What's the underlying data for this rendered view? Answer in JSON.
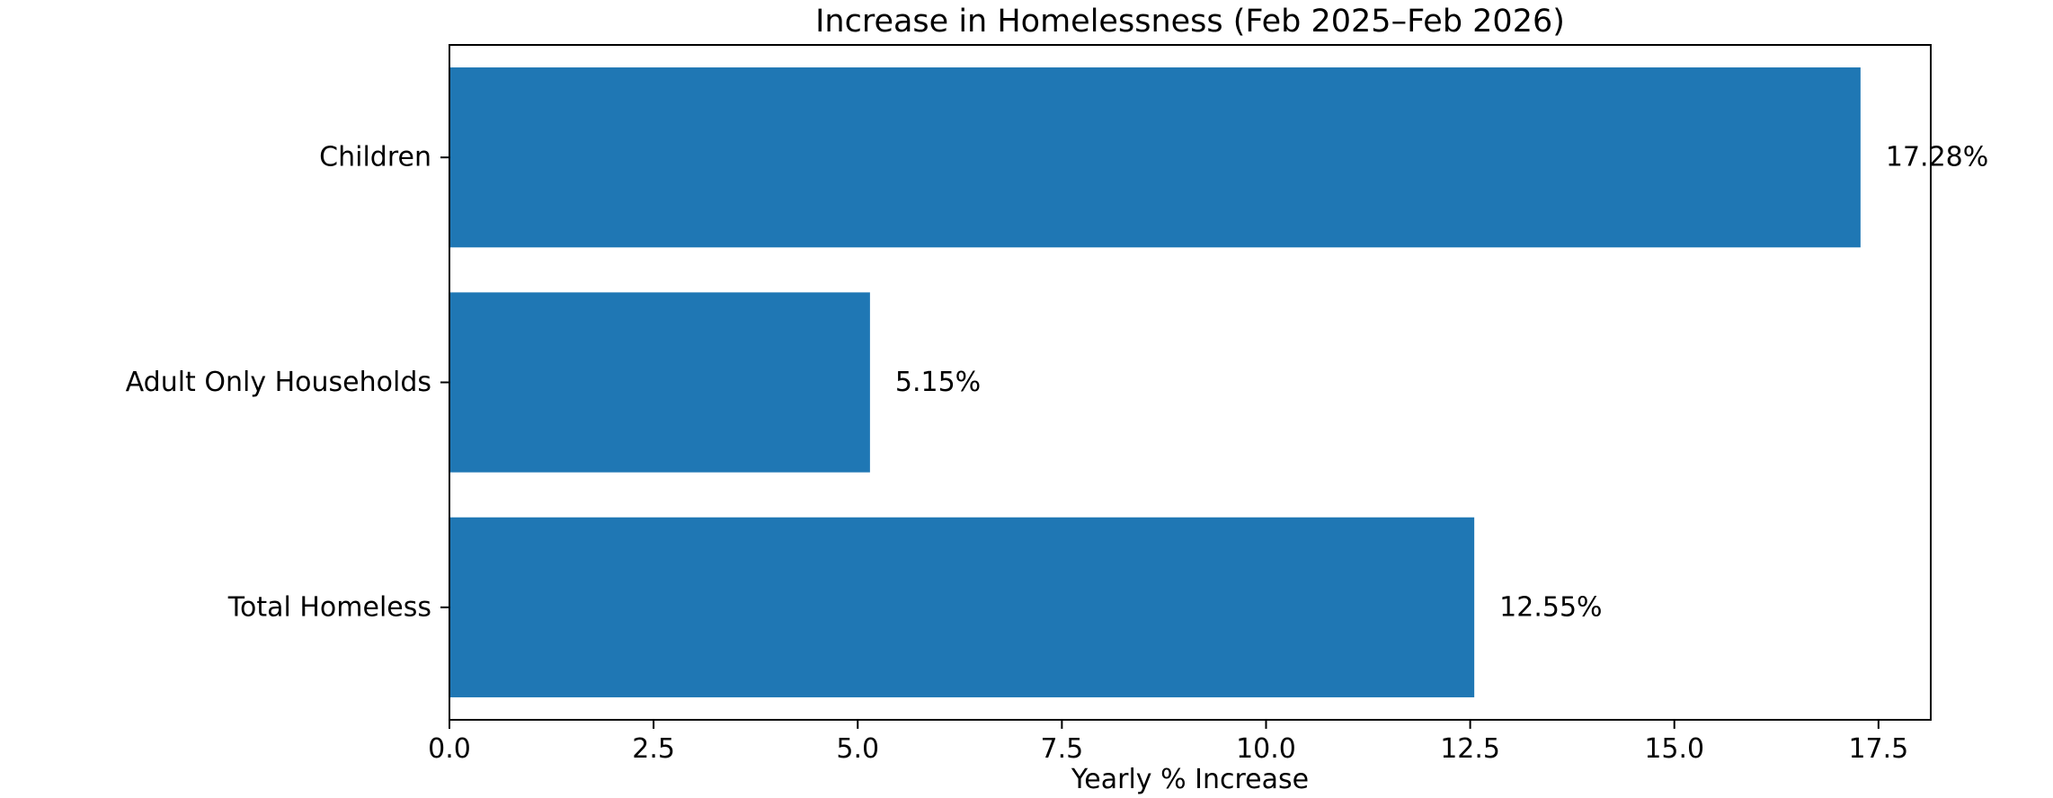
{
  "chart_data": {
    "type": "bar",
    "orientation": "horizontal",
    "title": "Increase in Homelessness (Feb 2025–Feb 2026)",
    "xlabel": "Yearly % Increase",
    "ylabel": "",
    "categories": [
      "Children",
      "Adult Only Households",
      "Total Homeless"
    ],
    "values": [
      17.28,
      5.15,
      12.55
    ],
    "data_labels": [
      "17.28%",
      "5.15%",
      "12.55%"
    ],
    "xlim": [
      0,
      18.14
    ],
    "x_ticks": [
      0.0,
      2.5,
      5.0,
      7.5,
      10.0,
      12.5,
      15.0,
      17.5
    ],
    "x_tick_labels": [
      "0.0",
      "2.5",
      "5.0",
      "7.5",
      "10.0",
      "12.5",
      "15.0",
      "17.5"
    ],
    "grid": false,
    "legend": "none",
    "colors": {
      "bar": "#1f77b4",
      "axes": "#000000",
      "text": "#000000",
      "background": "#ffffff"
    }
  }
}
